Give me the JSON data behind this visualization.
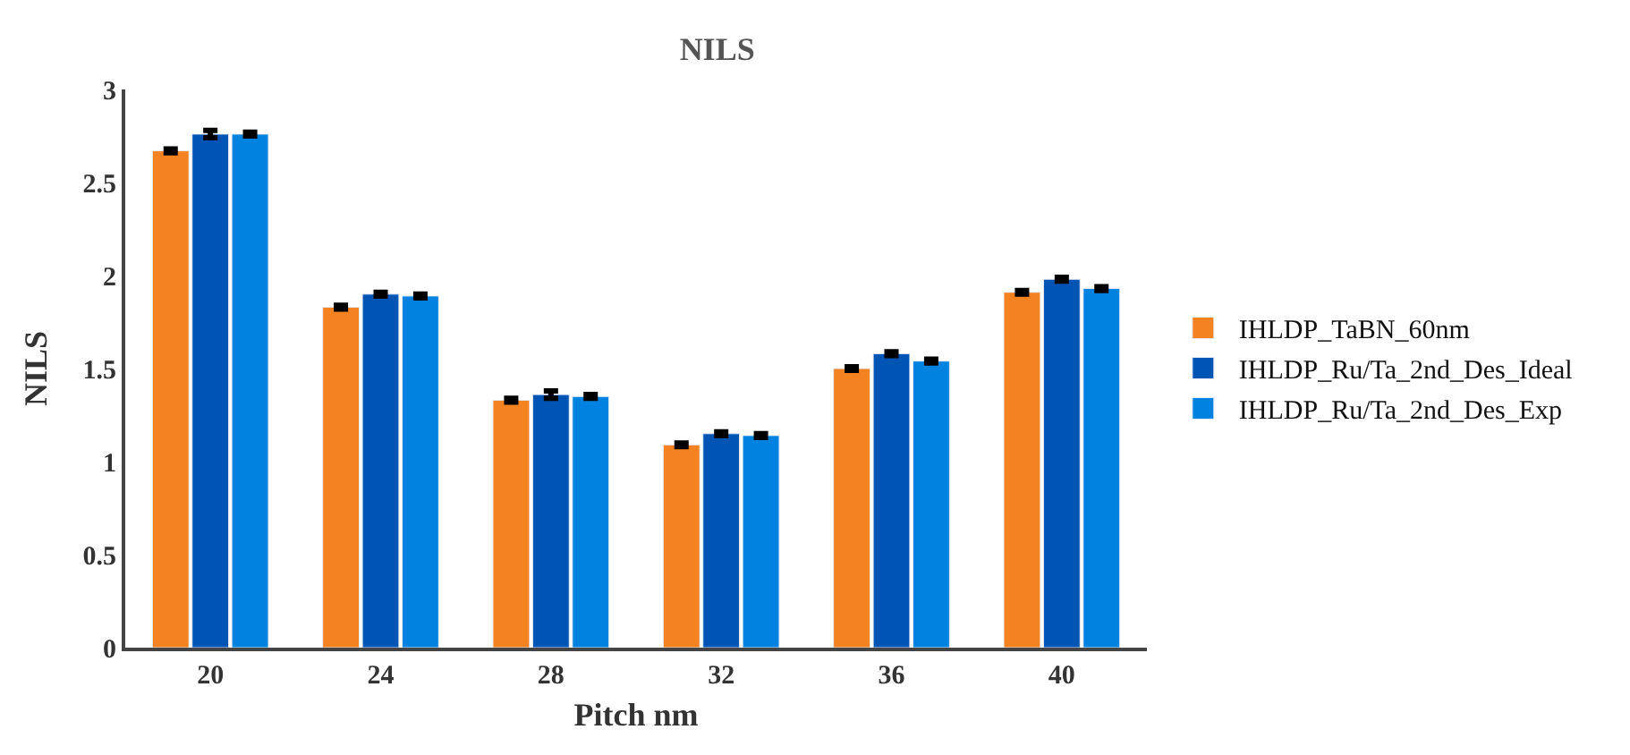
{
  "chart_data": {
    "type": "bar",
    "title": "NILS",
    "xlabel": "Pitch nm",
    "ylabel": "NILS",
    "categories": [
      "20",
      "24",
      "28",
      "32",
      "36",
      "40"
    ],
    "series": [
      {
        "name": "IHLDP_TaBN_60nm",
        "color": "#f58220",
        "values": [
          2.67,
          1.83,
          1.33,
          1.09,
          1.5,
          1.91
        ],
        "errors": [
          0.01,
          0.01,
          0.01,
          0.01,
          0.01,
          0.01
        ]
      },
      {
        "name": "IHLDP_Ru/Ta_2nd_Des_Ideal",
        "color": "#0054b4",
        "values": [
          2.76,
          1.9,
          1.36,
          1.15,
          1.58,
          1.98
        ],
        "errors": [
          0.02,
          0.01,
          0.02,
          0.01,
          0.01,
          0.01
        ]
      },
      {
        "name": "IHLDP_Ru/Ta_2nd_Des_Exp",
        "color": "#0083e0",
        "values": [
          2.76,
          1.89,
          1.35,
          1.14,
          1.54,
          1.93
        ],
        "errors": [
          0.01,
          0.01,
          0.01,
          0.01,
          0.01,
          0.01
        ]
      }
    ],
    "ylim": [
      0,
      3
    ],
    "yticks": [
      0,
      0.5,
      1,
      1.5,
      2,
      2.5,
      3
    ],
    "grid": false,
    "legend": "right"
  }
}
